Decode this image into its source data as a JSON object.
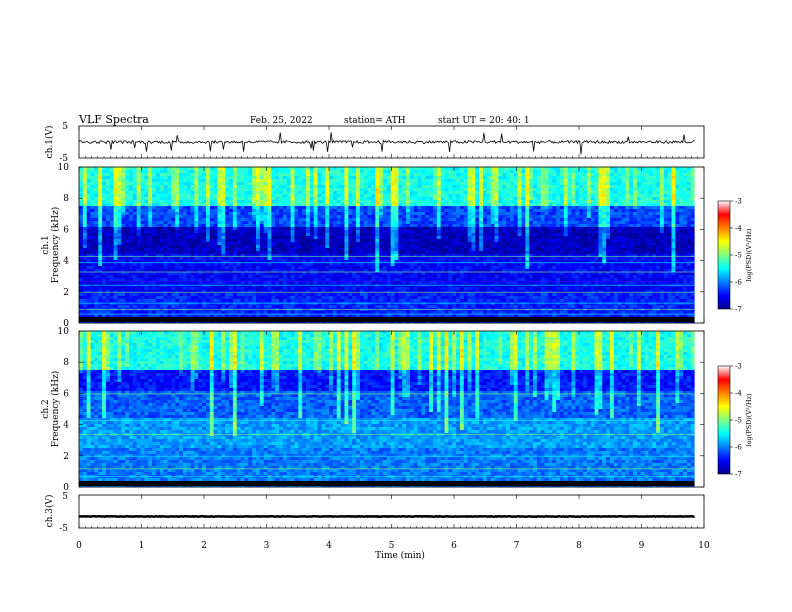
{
  "header": {
    "title": "VLF  Spectra",
    "date": "Feb. 25, 2022",
    "station": "station= ATH",
    "start_ut": "start  UT  =    20: 40: 1"
  },
  "colors": {
    "colormap": [
      "#00008f",
      "#0000ff",
      "#0080ff",
      "#00ffff",
      "#80ff80",
      "#ffff00",
      "#ff8000",
      "#ff0000",
      "#ffffff"
    ]
  },
  "chart_data": [
    {
      "type": "line",
      "panel": "ch1-waveform",
      "ylabel": "ch.1(V)",
      "ylim": [
        -5,
        5
      ],
      "yticks": [
        "5",
        "-5"
      ],
      "xlim": [
        0,
        10
      ],
      "approx_level": 0,
      "trace_color": "#000000"
    },
    {
      "type": "heatmap",
      "panel": "ch1-spectrogram",
      "ylabel": "ch.1\nFrequency  (kHz)",
      "ylim": [
        0,
        10
      ],
      "yticks": [
        "0",
        "2",
        "4",
        "6",
        "8",
        "10"
      ],
      "xlim": [
        0,
        9.85
      ],
      "colorbar": {
        "label": "log(PSD)(V²/Hz)",
        "range": [
          -7,
          -3
        ],
        "ticks": [
          "-3",
          "-4",
          "-5",
          "-6",
          "-7"
        ]
      }
    },
    {
      "type": "heatmap",
      "panel": "ch2-spectrogram",
      "ylabel": "ch.2\nFrequency  (kHz)",
      "ylim": [
        0,
        10
      ],
      "yticks": [
        "0",
        "2",
        "4",
        "6",
        "8",
        "10"
      ],
      "xlim": [
        0,
        9.85
      ],
      "colorbar": {
        "label": "log(PSD)(V²/Hz)",
        "range": [
          -7,
          -3
        ],
        "ticks": [
          "-3",
          "-4",
          "-5",
          "-6",
          "-7"
        ]
      }
    },
    {
      "type": "line",
      "panel": "ch3-waveform",
      "ylabel": "ch.3(V)",
      "ylim": [
        -5,
        5
      ],
      "yticks": [
        "5",
        "-5"
      ],
      "xlim": [
        0,
        10
      ],
      "approx_level": -1.5,
      "trace_color": "#000000"
    }
  ],
  "x_axis": {
    "label": "Time  (min)",
    "range": [
      0,
      10
    ],
    "ticks": [
      "0",
      "1",
      "2",
      "3",
      "4",
      "5",
      "6",
      "7",
      "8",
      "9",
      "10"
    ]
  }
}
